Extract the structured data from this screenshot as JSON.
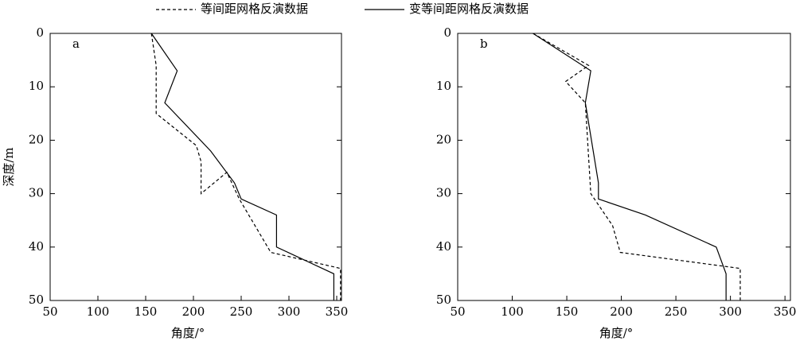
{
  "chart_data": [
    {
      "type": "line",
      "label": "a",
      "xlabel": "角度/°",
      "ylabel": "深度/m",
      "xlim": [
        50,
        355
      ],
      "xticks": [
        50,
        100,
        150,
        200,
        250,
        300,
        350
      ],
      "ylim": [
        0,
        50
      ],
      "yticks": [
        0,
        10,
        20,
        30,
        40,
        50
      ],
      "y_inverted": true,
      "series": [
        {
          "name": "等间距网格反演数据",
          "color": "#000000",
          "line_style": "dashed",
          "x": [
            156,
            161,
            161,
            203,
            208,
            208,
            235,
            248,
            281,
            354,
            354
          ],
          "y": [
            0,
            6,
            15,
            21,
            24,
            30,
            26,
            31,
            41,
            44,
            50
          ]
        },
        {
          "name": "变等间距网格反演数据",
          "color": "#000000",
          "line_style": "solid",
          "x": [
            156,
            183,
            170,
            218,
            243,
            250,
            287,
            287,
            347,
            347
          ],
          "y": [
            0,
            7,
            13,
            22,
            28,
            31,
            34,
            40,
            45,
            50
          ]
        }
      ]
    },
    {
      "type": "line",
      "label": "b",
      "xlabel": "角度/°",
      "xlim": [
        50,
        355
      ],
      "xticks": [
        50,
        100,
        150,
        200,
        250,
        300,
        350
      ],
      "ylim": [
        0,
        50
      ],
      "yticks": [
        0,
        10,
        20,
        30,
        40,
        50
      ],
      "y_inverted": true,
      "series": [
        {
          "color": "#000000",
          "line_style": "dashed",
          "x": [
            119,
            170,
            149,
            167,
            172,
            192,
            199,
            309,
            309
          ],
          "y": [
            0,
            6,
            9,
            13,
            30,
            36,
            41,
            44,
            50
          ]
        },
        {
          "color": "#000000",
          "line_style": "solid",
          "x": [
            119,
            172,
            167,
            179,
            179,
            222,
            287,
            296,
            296
          ],
          "y": [
            0,
            7,
            13,
            28,
            31,
            34,
            40,
            45,
            50
          ]
        }
      ]
    }
  ]
}
